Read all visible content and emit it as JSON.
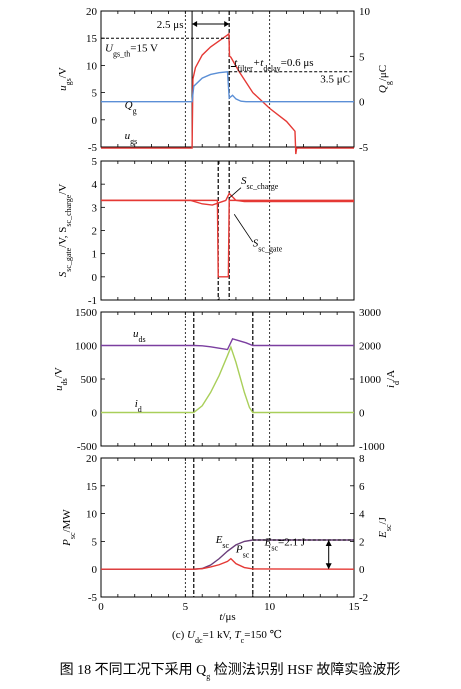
{
  "chart_data": [
    {
      "type": "line",
      "x_range": [
        0,
        15
      ],
      "ylim_left": [
        -5,
        20
      ],
      "ylim_right": [
        -5,
        10
      ],
      "left_ticks": [
        "20",
        "15",
        "10",
        "5",
        "0",
        "-5"
      ],
      "right_ticks": [
        "10",
        "5",
        "0",
        "-5"
      ],
      "ylabel_left": {
        "main": "u",
        "sub": "gs",
        "unit": "/V"
      },
      "ylabel_right": {
        "main": "Q",
        "sub": "g",
        "unit": "/μC"
      },
      "series": [
        {
          "name": "u_gs",
          "label": {
            "main": "u",
            "sub": "gs"
          },
          "axis": "left",
          "color": "#e53935",
          "x": [
            0,
            5.4,
            5.45,
            5.6,
            6.0,
            6.5,
            7.0,
            7.5,
            7.58,
            7.62,
            7.7,
            8.2,
            9.0,
            10.0,
            11.0,
            11.5,
            11.55,
            11.6,
            15
          ],
          "y": [
            -5.2,
            -5.2,
            7.5,
            9.6,
            11.9,
            13.4,
            14.5,
            15.6,
            15.8,
            11.7,
            11.5,
            8.8,
            5.0,
            2.1,
            -0.3,
            -2.1,
            -6.3,
            -5.2,
            -5.2
          ]
        },
        {
          "name": "Q_g",
          "label": {
            "main": "Q",
            "sub": "g"
          },
          "axis": "right",
          "color": "#5b8fd6",
          "x": [
            0,
            5.4,
            5.5,
            6.0,
            6.5,
            7.0,
            7.5,
            7.6,
            7.8,
            8.0,
            8.3,
            8.6,
            15
          ],
          "y": [
            0,
            0,
            1.7,
            2.6,
            3.0,
            3.2,
            3.3,
            0.4,
            0.7,
            0.3,
            0.05,
            0,
            0
          ]
        }
      ],
      "annotations": [
        {
          "text": "2.5 μs"
        },
        {
          "text_main": "U",
          "text_sub": "gs_th",
          "text_rest": "=15 V"
        },
        {
          "text_a": "t",
          "sub_a": "filter",
          "text_b": "+t",
          "sub_b": "delay",
          "text_c": "=0.6 μs"
        },
        {
          "text": "3.5 μC"
        }
      ]
    },
    {
      "type": "line",
      "x_range": [
        0,
        15
      ],
      "ylim": [
        -1,
        5
      ],
      "left_ticks": [
        "5",
        "4",
        "3",
        "2",
        "1",
        "0",
        "-1"
      ],
      "ylabel": {
        "a": "S",
        "a_sub": "sc_gate",
        "b": "/V, S",
        "b_sub": "sc_charge",
        "c": "/V"
      },
      "series": [
        {
          "name": "S_sc_charge",
          "label": {
            "main": "S",
            "sub": "sc_charge"
          },
          "color": "#e53935",
          "x": [
            0,
            5.3,
            6.0,
            6.6,
            7.0,
            7.4,
            7.6,
            8.0,
            8.5,
            15
          ],
          "y": [
            3.3,
            3.3,
            3.15,
            3.1,
            3.2,
            3.3,
            3.6,
            3.3,
            3.25,
            3.25
          ]
        },
        {
          "name": "S_sc_gate",
          "label": {
            "main": "S",
            "sub": "sc_gate"
          },
          "color": "#e53935",
          "x": [
            0,
            6.9,
            6.95,
            7.55,
            7.6,
            15
          ],
          "y": [
            3.3,
            3.3,
            0,
            0,
            3.3,
            3.3
          ]
        }
      ]
    },
    {
      "type": "line",
      "x_range": [
        0,
        15
      ],
      "ylim_left": [
        -500,
        1500
      ],
      "ylim_right": [
        -1000,
        3000
      ],
      "left_ticks": [
        "1500",
        "1000",
        "500",
        "0",
        "-500"
      ],
      "right_ticks": [
        "3000",
        "2000",
        "1000",
        "0",
        "-1000"
      ],
      "ylabel_left": {
        "main": "u",
        "sub": "ds",
        "unit": "/V"
      },
      "ylabel_right": {
        "main": "i",
        "sub": "d",
        "unit": "/A"
      },
      "series": [
        {
          "name": "u_ds",
          "label": {
            "main": "u",
            "sub": "ds"
          },
          "axis": "left",
          "color": "#7b3fa0",
          "x": [
            0,
            5.5,
            6.0,
            6.5,
            7.0,
            7.5,
            7.8,
            8.2,
            8.6,
            9.0,
            15
          ],
          "y": [
            1000,
            1000,
            995,
            980,
            960,
            940,
            1100,
            1070,
            1040,
            1000,
            1000
          ]
        },
        {
          "name": "i_d",
          "label": {
            "main": "i",
            "sub": "d"
          },
          "axis": "right",
          "color": "#a9cf5a",
          "x": [
            0,
            5.5,
            6.0,
            6.5,
            7.0,
            7.5,
            7.7,
            8.0,
            8.5,
            8.8,
            9.0,
            15
          ],
          "y": [
            0,
            0,
            200,
            600,
            1100,
            1700,
            1950,
            1500,
            600,
            150,
            0,
            0
          ]
        }
      ]
    },
    {
      "type": "line",
      "x_range": [
        0,
        15
      ],
      "xlabel": {
        "main": "t",
        "unit": "/μs"
      },
      "x_ticks": [
        "0",
        "5",
        "10",
        "15"
      ],
      "ylim_left": [
        -5,
        20
      ],
      "ylim_right": [
        -2,
        8
      ],
      "left_ticks": [
        "20",
        "15",
        "10",
        "5",
        "0",
        "-5"
      ],
      "right_ticks": [
        "8",
        "6",
        "4",
        "2",
        "0",
        "-2"
      ],
      "ylabel_left": {
        "main": "P",
        "sub": "sc",
        "unit": "/MW"
      },
      "ylabel_right": {
        "main": "E",
        "sub": "sc",
        "unit": "/J"
      },
      "series": [
        {
          "name": "E_sc",
          "label": {
            "main": "E",
            "sub": "sc"
          },
          "axis": "right",
          "color": "#6a3d7a",
          "x": [
            0,
            5.5,
            6.0,
            6.5,
            7.0,
            7.5,
            8.0,
            8.5,
            9.0,
            9.5,
            15
          ],
          "y": [
            0,
            0,
            0.05,
            0.3,
            0.75,
            1.3,
            1.75,
            2.0,
            2.1,
            2.1,
            2.1
          ]
        },
        {
          "name": "P_sc",
          "label": {
            "main": "P",
            "sub": "sc"
          },
          "axis": "left",
          "color": "#e53935",
          "x": [
            0,
            5.5,
            6.0,
            6.5,
            7.0,
            7.5,
            7.7,
            8.0,
            8.5,
            9.0,
            15
          ],
          "y": [
            0,
            0,
            0.1,
            0.4,
            0.8,
            1.4,
            1.9,
            1.0,
            0.3,
            0.05,
            0
          ]
        }
      ],
      "annotations": [
        {
          "text_main": "E",
          "text_sub": "sc",
          "text_rest": "=2.1 J"
        }
      ]
    }
  ],
  "subcaption": {
    "prefix": "(c) ",
    "u": "U",
    "u_sub": "dc",
    "mid": "=1 kV, ",
    "t": "T",
    "t_sub": "c",
    "rest": "=150 ℃"
  },
  "caption": "图 18   不同工况下采用 Q",
  "caption_q_sub": "g",
  "caption_rest": " 检测法识别 HSF 故障实验波形"
}
